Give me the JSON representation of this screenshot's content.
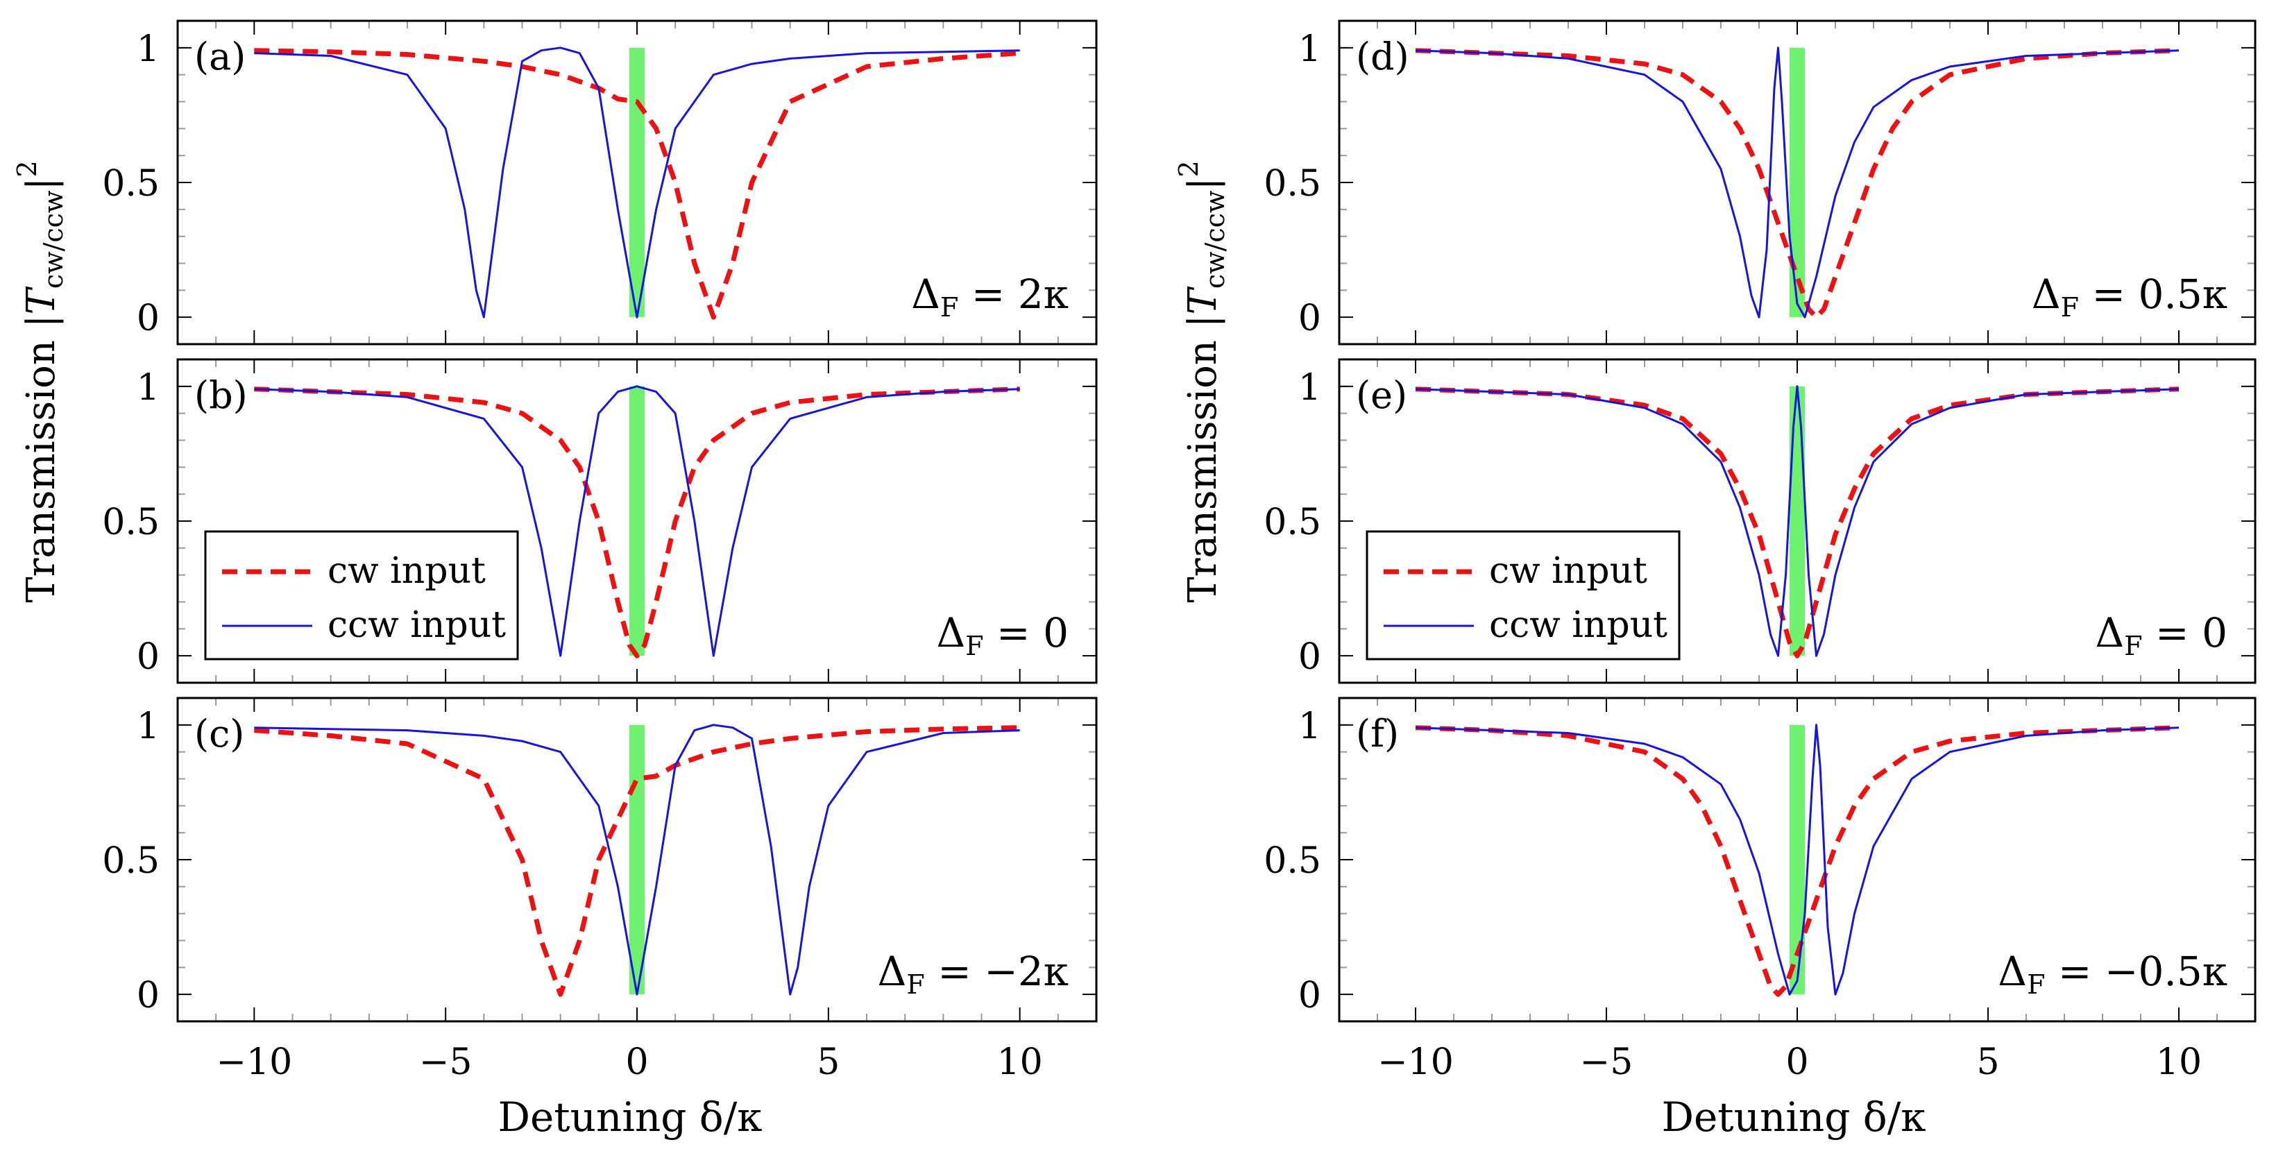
{
  "figure": {
    "ylabel_prefix": "Transmission |",
    "ylabel_T": "T",
    "ylabel_sub": "cw/ccw",
    "ylabel_suffix": "|",
    "ylabel_sup": "2",
    "xlabel": "Detuning δ/κ"
  },
  "legend": {
    "cw_label": "cw input",
    "ccw_label": "ccw input"
  },
  "colors": {
    "cw": "#ee1111",
    "ccw": "#1515dd",
    "highlight": "#55ee55",
    "axis": "#000000",
    "tick": "#999999"
  },
  "chart_data": [
    {
      "id": "a",
      "panel_label": "(a)",
      "type": "line",
      "delta_F_prefix": "Δ",
      "delta_F_sub": "F",
      "delta_F_value": "= 2κ",
      "delta_F_kappa": 2,
      "xlim": [
        -12,
        12
      ],
      "ylim": [
        -0.1,
        1.1
      ],
      "xticks": [
        -10,
        -5,
        0,
        5,
        10
      ],
      "yticks": [
        0,
        0.5,
        1
      ],
      "ytick_labels": [
        "0",
        "0.5",
        "1"
      ],
      "series": [
        {
          "name": "cw input",
          "style": "dashed",
          "x": [
            -10,
            -8,
            -6,
            -4,
            -3,
            -2,
            -1,
            -0.5,
            0,
            0.5,
            1,
            1.5,
            2,
            2.5,
            3,
            4,
            6,
            8,
            10
          ],
          "y": [
            0.99,
            0.985,
            0.975,
            0.95,
            0.93,
            0.9,
            0.85,
            0.81,
            0.8,
            0.7,
            0.5,
            0.2,
            0.0,
            0.2,
            0.5,
            0.8,
            0.93,
            0.96,
            0.98
          ]
        },
        {
          "name": "ccw input",
          "style": "solid",
          "x": [
            -10,
            -8,
            -6,
            -5,
            -4.5,
            -4.2,
            -4,
            -3.5,
            -3,
            -2.5,
            -2,
            -1.5,
            -1,
            -0.5,
            0,
            0.5,
            1,
            2,
            3,
            4,
            6,
            8,
            10
          ],
          "y": [
            0.98,
            0.97,
            0.9,
            0.7,
            0.4,
            0.1,
            0.0,
            0.55,
            0.95,
            0.99,
            1.0,
            0.98,
            0.85,
            0.4,
            0.0,
            0.4,
            0.7,
            0.9,
            0.94,
            0.96,
            0.98,
            0.985,
            0.99
          ]
        }
      ]
    },
    {
      "id": "b",
      "panel_label": "(b)",
      "type": "line",
      "delta_F_prefix": "Δ",
      "delta_F_sub": "F",
      "delta_F_value": "= 0",
      "delta_F_kappa": 0,
      "xlim": [
        -12,
        12
      ],
      "ylim": [
        -0.1,
        1.1
      ],
      "xticks": [
        -10,
        -5,
        0,
        5,
        10
      ],
      "yticks": [
        0,
        0.5,
        1
      ],
      "ytick_labels": [
        "0",
        "0.5",
        "1"
      ],
      "series": [
        {
          "name": "cw input",
          "style": "dashed",
          "x": [
            -10,
            -8,
            -6,
            -4,
            -3,
            -2,
            -1.5,
            -1,
            -0.5,
            -0.2,
            0,
            0.2,
            0.5,
            1,
            1.5,
            2,
            3,
            4,
            6,
            8,
            10
          ],
          "y": [
            0.99,
            0.98,
            0.97,
            0.94,
            0.9,
            0.8,
            0.7,
            0.5,
            0.2,
            0.04,
            0.0,
            0.04,
            0.2,
            0.5,
            0.7,
            0.8,
            0.9,
            0.94,
            0.97,
            0.98,
            0.99
          ]
        },
        {
          "name": "ccw input",
          "style": "solid",
          "x": [
            -10,
            -8,
            -6,
            -4,
            -3,
            -2.5,
            -2,
            -1.5,
            -1,
            -0.5,
            0,
            0.5,
            1,
            1.5,
            2,
            2.5,
            3,
            4,
            6,
            8,
            10
          ],
          "y": [
            0.99,
            0.98,
            0.96,
            0.88,
            0.7,
            0.4,
            0.0,
            0.5,
            0.9,
            0.98,
            1.0,
            0.98,
            0.9,
            0.5,
            0.0,
            0.4,
            0.7,
            0.88,
            0.96,
            0.98,
            0.99
          ]
        }
      ]
    },
    {
      "id": "c",
      "panel_label": "(c)",
      "type": "line",
      "delta_F_prefix": "Δ",
      "delta_F_sub": "F",
      "delta_F_value": "= −2κ",
      "delta_F_kappa": -2,
      "xlim": [
        -12,
        12
      ],
      "ylim": [
        -0.1,
        1.1
      ],
      "xticks": [
        -10,
        -5,
        0,
        5,
        10
      ],
      "yticks": [
        0,
        0.5,
        1
      ],
      "ytick_labels": [
        "0",
        "0.5",
        "1"
      ],
      "series": [
        {
          "name": "cw input",
          "style": "dashed",
          "x": [
            -10,
            -8,
            -6,
            -4,
            -3,
            -2.5,
            -2,
            -1.5,
            -1,
            0,
            0.5,
            1,
            2,
            3,
            4,
            6,
            8,
            10
          ],
          "y": [
            0.98,
            0.96,
            0.93,
            0.8,
            0.5,
            0.2,
            0.0,
            0.2,
            0.5,
            0.8,
            0.81,
            0.85,
            0.9,
            0.93,
            0.95,
            0.975,
            0.985,
            0.99
          ]
        },
        {
          "name": "ccw input",
          "style": "solid",
          "x": [
            -10,
            -8,
            -6,
            -4,
            -3,
            -2,
            -1,
            -0.5,
            0,
            0.5,
            1,
            1.5,
            2,
            2.5,
            3,
            3.5,
            4,
            4.2,
            4.5,
            5,
            6,
            8,
            10
          ],
          "y": [
            0.99,
            0.985,
            0.98,
            0.96,
            0.94,
            0.9,
            0.7,
            0.4,
            0.0,
            0.4,
            0.85,
            0.98,
            1.0,
            0.99,
            0.95,
            0.55,
            0.0,
            0.1,
            0.4,
            0.7,
            0.9,
            0.97,
            0.98
          ]
        }
      ]
    },
    {
      "id": "d",
      "panel_label": "(d)",
      "type": "line",
      "delta_F_prefix": "Δ",
      "delta_F_sub": "F",
      "delta_F_value": "= 0.5κ",
      "delta_F_kappa": 0.5,
      "xlim": [
        -12,
        12
      ],
      "ylim": [
        -0.1,
        1.1
      ],
      "xticks": [
        -10,
        -5,
        0,
        5,
        10
      ],
      "yticks": [
        0,
        0.5,
        1
      ],
      "ytick_labels": [
        "0",
        "0.5",
        "1"
      ],
      "series": [
        {
          "name": "cw input",
          "style": "dashed",
          "x": [
            -10,
            -8,
            -6,
            -4,
            -3,
            -2,
            -1.5,
            -1,
            -0.5,
            0,
            0.3,
            0.5,
            0.7,
            1,
            1.5,
            2,
            2.5,
            3,
            4,
            6,
            8,
            10
          ],
          "y": [
            0.99,
            0.98,
            0.97,
            0.94,
            0.9,
            0.8,
            0.7,
            0.55,
            0.35,
            0.15,
            0.03,
            0.0,
            0.03,
            0.15,
            0.35,
            0.55,
            0.7,
            0.8,
            0.9,
            0.96,
            0.98,
            0.99
          ]
        },
        {
          "name": "ccw input",
          "style": "solid",
          "x": [
            -10,
            -8,
            -6,
            -4,
            -3,
            -2,
            -1.5,
            -1.2,
            -1,
            -0.8,
            -0.6,
            -0.5,
            -0.4,
            -0.2,
            0,
            0.2,
            0.5,
            1,
            1.5,
            2,
            3,
            4,
            6,
            8,
            10
          ],
          "y": [
            0.99,
            0.98,
            0.96,
            0.9,
            0.8,
            0.55,
            0.3,
            0.08,
            0.0,
            0.25,
            0.85,
            1.0,
            0.8,
            0.3,
            0.05,
            0.0,
            0.15,
            0.45,
            0.65,
            0.78,
            0.88,
            0.93,
            0.97,
            0.98,
            0.99
          ]
        }
      ]
    },
    {
      "id": "e",
      "panel_label": "(e)",
      "type": "line",
      "delta_F_prefix": "Δ",
      "delta_F_sub": "F",
      "delta_F_value": "= 0",
      "delta_F_kappa": 0,
      "xlim": [
        -12,
        12
      ],
      "ylim": [
        -0.1,
        1.1
      ],
      "xticks": [
        -10,
        -5,
        0,
        5,
        10
      ],
      "yticks": [
        0,
        0.5,
        1
      ],
      "ytick_labels": [
        "0",
        "0.5",
        "1"
      ],
      "series": [
        {
          "name": "cw input",
          "style": "dashed",
          "x": [
            -10,
            -8,
            -6,
            -4,
            -3,
            -2,
            -1.5,
            -1,
            -0.5,
            -0.2,
            0,
            0.2,
            0.5,
            1,
            1.5,
            2,
            3,
            4,
            6,
            8,
            10
          ],
          "y": [
            0.99,
            0.98,
            0.97,
            0.93,
            0.88,
            0.75,
            0.62,
            0.45,
            0.2,
            0.05,
            0.0,
            0.05,
            0.2,
            0.45,
            0.62,
            0.75,
            0.88,
            0.93,
            0.97,
            0.98,
            0.99
          ]
        },
        {
          "name": "ccw input",
          "style": "solid",
          "x": [
            -10,
            -8,
            -6,
            -4,
            -3,
            -2,
            -1.5,
            -1,
            -0.7,
            -0.5,
            -0.3,
            -0.1,
            0,
            0.1,
            0.3,
            0.5,
            0.7,
            1,
            1.5,
            2,
            3,
            4,
            6,
            8,
            10
          ],
          "y": [
            0.99,
            0.98,
            0.97,
            0.92,
            0.86,
            0.72,
            0.55,
            0.3,
            0.08,
            0.0,
            0.3,
            0.85,
            1.0,
            0.85,
            0.3,
            0.0,
            0.08,
            0.3,
            0.55,
            0.72,
            0.86,
            0.92,
            0.97,
            0.98,
            0.99
          ]
        }
      ]
    },
    {
      "id": "f",
      "panel_label": "(f)",
      "type": "line",
      "delta_F_prefix": "Δ",
      "delta_F_sub": "F",
      "delta_F_value": "= −0.5κ",
      "delta_F_kappa": -0.5,
      "xlim": [
        -12,
        12
      ],
      "ylim": [
        -0.1,
        1.1
      ],
      "xticks": [
        -10,
        -5,
        0,
        5,
        10
      ],
      "yticks": [
        0,
        0.5,
        1
      ],
      "ytick_labels": [
        "0",
        "0.5",
        "1"
      ],
      "series": [
        {
          "name": "cw input",
          "style": "dashed",
          "x": [
            -10,
            -8,
            -6,
            -4,
            -3,
            -2.5,
            -2,
            -1.5,
            -1,
            -0.7,
            -0.5,
            -0.3,
            0,
            0.5,
            1,
            1.5,
            2,
            3,
            4,
            6,
            8,
            10
          ],
          "y": [
            0.99,
            0.98,
            0.96,
            0.9,
            0.8,
            0.7,
            0.55,
            0.35,
            0.15,
            0.03,
            0.0,
            0.03,
            0.15,
            0.35,
            0.55,
            0.7,
            0.8,
            0.9,
            0.94,
            0.97,
            0.98,
            0.99
          ]
        },
        {
          "name": "ccw input",
          "style": "solid",
          "x": [
            -10,
            -8,
            -6,
            -4,
            -3,
            -2,
            -1.5,
            -1,
            -0.5,
            -0.2,
            0,
            0.2,
            0.4,
            0.5,
            0.6,
            0.8,
            1,
            1.2,
            1.5,
            2,
            3,
            4,
            6,
            8,
            10
          ],
          "y": [
            0.99,
            0.98,
            0.97,
            0.93,
            0.88,
            0.78,
            0.65,
            0.45,
            0.15,
            0.0,
            0.05,
            0.3,
            0.8,
            1.0,
            0.85,
            0.25,
            0.0,
            0.08,
            0.3,
            0.55,
            0.8,
            0.9,
            0.96,
            0.98,
            0.99
          ]
        }
      ]
    }
  ]
}
